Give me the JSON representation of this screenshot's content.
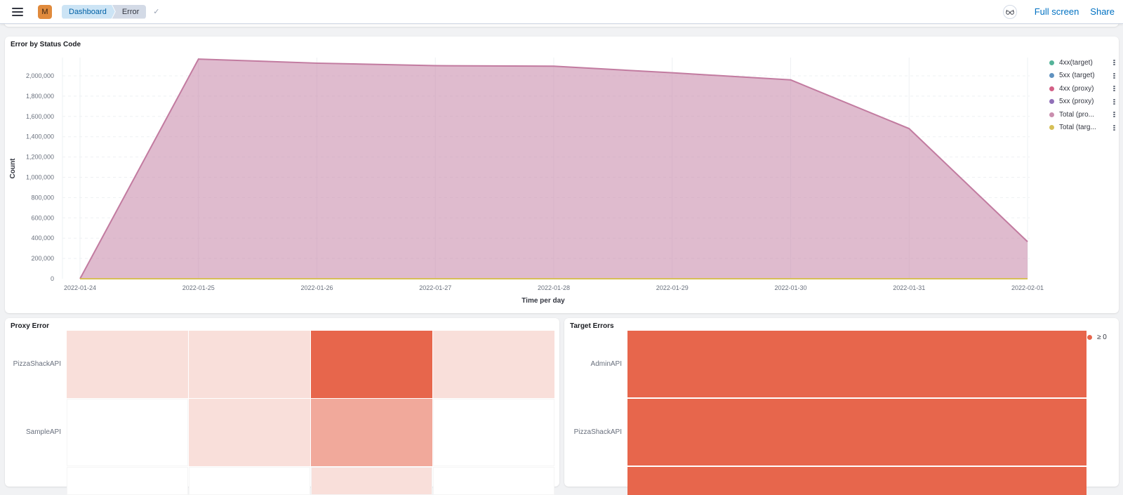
{
  "header": {
    "avatar_initial": "M",
    "breadcrumbs": [
      "Dashboard",
      "Error"
    ],
    "check_icon": "✓",
    "links": {
      "full_screen": "Full screen",
      "share": "Share"
    }
  },
  "panels": {
    "status_code": {
      "title": "Error by Status Code",
      "xlabel": "Time per day",
      "ylabel": "Count"
    },
    "proxy_error": {
      "title": "Proxy Error",
      "rows": [
        "PizzaShackAPI",
        "SampleAPI"
      ]
    },
    "target_errors": {
      "title": "Target Errors",
      "rows": [
        "AdminAPI",
        "PizzaShackAPI"
      ],
      "legend_label": "≥ 0"
    }
  },
  "chart_data": [
    {
      "type": "area",
      "title": "Error by Status Code",
      "xlabel": "Time per day",
      "ylabel": "Count",
      "x": [
        "2022-01-24",
        "2022-01-25",
        "2022-01-26",
        "2022-01-27",
        "2022-01-28",
        "2022-01-29",
        "2022-01-30",
        "2022-01-31",
        "2022-02-01"
      ],
      "y_ticks": [
        "0",
        "200,000",
        "400,000",
        "600,000",
        "800,000",
        "1,000,000",
        "1,200,000",
        "1,400,000",
        "1,600,000",
        "1,800,000",
        "2,000,000"
      ],
      "ylim": [
        0,
        2200000
      ],
      "grid": true,
      "legend_position": "right",
      "series": [
        {
          "name": "4xx(target)",
          "color": "#54b399",
          "values": [
            0,
            0,
            0,
            0,
            0,
            0,
            0,
            0,
            0
          ]
        },
        {
          "name": "5xx (target)",
          "color": "#6092c0",
          "values": [
            0,
            0,
            0,
            0,
            0,
            0,
            0,
            0,
            0
          ]
        },
        {
          "name": "4xx (proxy)",
          "color": "#d36086",
          "values": [
            0,
            0,
            0,
            0,
            0,
            0,
            0,
            0,
            0
          ]
        },
        {
          "name": "5xx (proxy)",
          "color": "#9170b8",
          "values": [
            0,
            0,
            0,
            0,
            0,
            0,
            0,
            0,
            0
          ]
        },
        {
          "name": "Total (pro...",
          "color": "#ca8eae",
          "values": [
            0,
            2165000,
            2125000,
            2100000,
            2095000,
            2030000,
            1960000,
            1480000,
            365000
          ]
        },
        {
          "name": "Total (targ...",
          "color": "#d6bf57",
          "values": [
            0,
            0,
            0,
            0,
            0,
            0,
            0,
            0,
            0
          ]
        }
      ]
    },
    {
      "type": "heatmap",
      "title": "Proxy Error",
      "rows": [
        "PizzaShackAPI",
        "SampleAPI"
      ],
      "columns": 4,
      "intensity": [
        [
          0.1,
          0.1,
          1.0,
          0.1
        ],
        [
          0.0,
          0.1,
          0.5,
          0.0
        ]
      ]
    },
    {
      "type": "heatmap",
      "title": "Target Errors",
      "rows": [
        "AdminAPI",
        "PizzaShackAPI"
      ],
      "columns": 1,
      "intensity": [
        [
          1.0
        ],
        [
          1.0
        ]
      ],
      "legend": [
        "≥ 0"
      ]
    }
  ]
}
